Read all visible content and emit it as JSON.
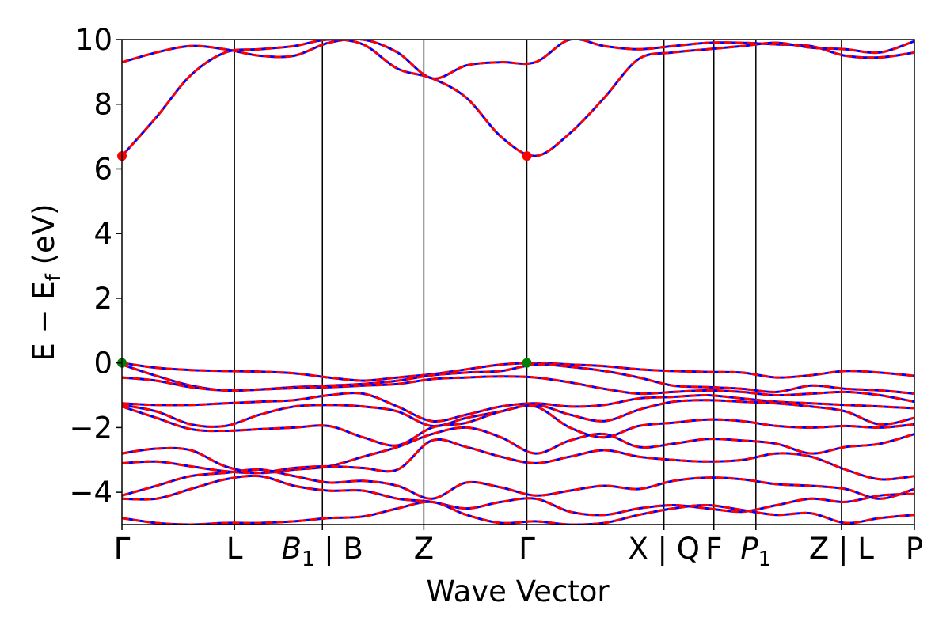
{
  "chart_data": {
    "type": "line",
    "xlabel": "Wave Vector",
    "ylabel": {
      "main": "E − E",
      "sub": "f",
      "unit": " (eV)"
    },
    "ylim": [
      -5,
      10
    ],
    "yticks": [
      {
        "value": 10,
        "label": "10"
      },
      {
        "value": 8,
        "label": "8"
      },
      {
        "value": 6,
        "label": "6"
      },
      {
        "value": 4,
        "label": "4"
      },
      {
        "value": 2,
        "label": "2"
      },
      {
        "value": 0,
        "label": "0"
      },
      {
        "value": -2,
        "label": "−2"
      },
      {
        "value": -4,
        "label": "−4"
      }
    ],
    "xlim": [
      0,
      1
    ],
    "kpoints": [
      {
        "x": 0.0,
        "parts": [
          {
            "t": "Γ"
          }
        ]
      },
      {
        "x": 0.142,
        "parts": [
          {
            "t": "L"
          }
        ]
      },
      {
        "x": 0.253,
        "parts": [
          {
            "t": "B",
            "i": true
          },
          {
            "t": "1",
            "i": false,
            "sub": true
          },
          {
            "t": " | B"
          }
        ]
      },
      {
        "x": 0.381,
        "parts": [
          {
            "t": "Z"
          }
        ]
      },
      {
        "x": 0.511,
        "parts": [
          {
            "t": "Γ"
          }
        ]
      },
      {
        "x": 0.684,
        "parts": [
          {
            "t": "X | Q"
          }
        ]
      },
      {
        "x": 0.747,
        "parts": [
          {
            "t": "F"
          }
        ]
      },
      {
        "x": 0.8,
        "parts": [
          {
            "t": "P",
            "i": true
          },
          {
            "t": "1",
            "i": false,
            "sub": true
          }
        ]
      },
      {
        "x": 0.908,
        "parts": [
          {
            "t": "Z | L"
          }
        ]
      },
      {
        "x": 1.0,
        "parts": [
          {
            "t": "P"
          }
        ]
      }
    ],
    "series": [
      {
        "color": "#0000ff",
        "style": "solid"
      },
      {
        "color": "#ff0000",
        "style": "dashed"
      }
    ],
    "bands": [
      [
        9.3,
        9.6,
        9.8,
        9.7,
        9.5,
        9.5,
        9.9,
        10.0,
        9.6,
        8.8,
        9.2,
        9.3,
        9.3,
        10.0,
        9.8,
        9.7,
        9.8,
        9.9,
        9.9,
        9.85,
        9.8,
        9.5,
        9.45,
        9.6
      ],
      [
        6.4,
        7.6,
        8.9,
        9.6,
        9.7,
        9.8,
        10.0,
        9.85,
        9.1,
        8.8,
        8.2,
        7.0,
        6.4,
        7.1,
        8.2,
        9.4,
        9.6,
        9.7,
        9.8,
        9.9,
        9.75,
        9.7,
        9.6,
        9.95
      ],
      [
        0.0,
        -0.15,
        -0.22,
        -0.25,
        -0.27,
        -0.32,
        -0.45,
        -0.55,
        -0.45,
        -0.35,
        -0.2,
        -0.05,
        0.0,
        -0.05,
        -0.1,
        -0.2,
        -0.25,
        -0.28,
        -0.3,
        -0.45,
        -0.38,
        -0.25,
        -0.3,
        -0.4
      ],
      [
        -0.05,
        -0.4,
        -0.7,
        -0.85,
        -0.82,
        -0.75,
        -0.7,
        -0.65,
        -0.55,
        -0.38,
        -0.3,
        -0.25,
        -0.05,
        -0.12,
        -0.25,
        -0.45,
        -0.7,
        -0.75,
        -0.8,
        -0.9,
        -0.7,
        -0.8,
        -0.85,
        -0.95
      ],
      [
        -0.45,
        -0.55,
        -0.75,
        -0.85,
        -0.82,
        -0.78,
        -0.75,
        -0.7,
        -0.65,
        -0.5,
        -0.45,
        -0.42,
        -0.45,
        -0.6,
        -0.8,
        -0.95,
        -0.9,
        -0.85,
        -0.9,
        -1.0,
        -0.95,
        -0.9,
        -1.0,
        -1.2
      ],
      [
        -1.25,
        -1.3,
        -1.3,
        -1.25,
        -1.2,
        -1.15,
        -1.0,
        -0.95,
        -1.35,
        -1.8,
        -1.6,
        -1.35,
        -1.25,
        -1.35,
        -1.3,
        -1.1,
        -1.05,
        -1.0,
        -1.1,
        -1.2,
        -1.25,
        -1.3,
        -1.35,
        -1.4
      ],
      [
        -1.3,
        -1.5,
        -1.9,
        -1.95,
        -1.6,
        -1.35,
        -1.3,
        -1.35,
        -1.5,
        -1.95,
        -1.7,
        -1.5,
        -1.3,
        -1.6,
        -1.8,
        -1.45,
        -1.2,
        -1.15,
        -1.2,
        -1.25,
        -1.35,
        -1.5,
        -1.9,
        -1.7
      ],
      [
        -1.35,
        -1.7,
        -2.05,
        -2.1,
        -2.05,
        -2.0,
        -1.95,
        -2.3,
        -2.55,
        -2.0,
        -1.85,
        -1.5,
        -1.35,
        -2.0,
        -2.3,
        -1.95,
        -1.85,
        -1.75,
        -1.8,
        -1.95,
        -2.0,
        -1.95,
        -2.0,
        -1.9
      ],
      [
        -2.8,
        -2.65,
        -2.7,
        -3.2,
        -3.4,
        -3.3,
        -3.2,
        -2.9,
        -2.6,
        -2.2,
        -2.0,
        -2.3,
        -2.8,
        -2.4,
        -2.2,
        -2.6,
        -2.5,
        -2.35,
        -2.4,
        -2.5,
        -2.8,
        -2.6,
        -2.5,
        -2.2
      ],
      [
        -3.1,
        -3.05,
        -3.2,
        -3.35,
        -3.4,
        -3.25,
        -3.2,
        -3.25,
        -3.3,
        -2.4,
        -2.6,
        -2.9,
        -3.1,
        -2.9,
        -2.7,
        -2.9,
        -3.0,
        -3.05,
        -3.0,
        -2.8,
        -2.9,
        -3.3,
        -3.6,
        -3.5
      ],
      [
        -4.1,
        -3.8,
        -3.5,
        -3.4,
        -3.3,
        -3.5,
        -3.7,
        -3.65,
        -3.8,
        -4.2,
        -3.7,
        -3.85,
        -4.1,
        -3.95,
        -3.8,
        -3.9,
        -3.65,
        -3.55,
        -3.6,
        -3.75,
        -3.8,
        -3.9,
        -4.2,
        -3.9
      ],
      [
        -4.2,
        -4.2,
        -3.9,
        -3.6,
        -3.5,
        -3.8,
        -3.95,
        -3.95,
        -4.2,
        -4.3,
        -4.5,
        -4.3,
        -4.2,
        -4.6,
        -4.7,
        -4.5,
        -4.4,
        -4.5,
        -4.6,
        -4.4,
        -4.2,
        -4.3,
        -4.1,
        -4.05
      ],
      [
        -4.8,
        -4.95,
        -5.0,
        -4.95,
        -4.95,
        -4.9,
        -4.8,
        -4.75,
        -4.5,
        -4.3,
        -4.7,
        -4.95,
        -4.9,
        -5.0,
        -4.95,
        -4.7,
        -4.5,
        -4.4,
        -4.55,
        -4.7,
        -4.65,
        -4.95,
        -4.8,
        -4.7
      ]
    ],
    "markers": [
      {
        "x": 0.0,
        "y": 6.4,
        "color": "#ff0000"
      },
      {
        "x": 0.511,
        "y": 6.4,
        "color": "#ff0000"
      },
      {
        "x": 0.0,
        "y": 0.0,
        "color": "#008000"
      },
      {
        "x": 0.511,
        "y": 0.0,
        "color": "#008000"
      }
    ]
  }
}
